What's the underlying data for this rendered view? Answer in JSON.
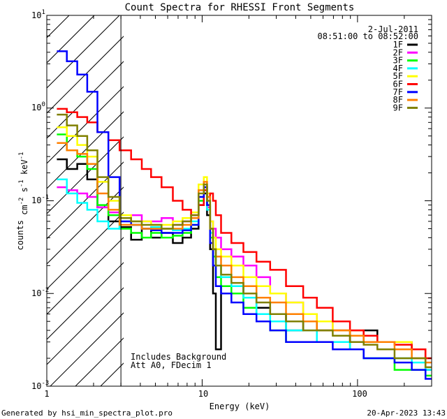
{
  "chart_data": {
    "type": "line",
    "title": "Count Spectra for RHESSI Front Segments",
    "xlabel": "Energy (keV)",
    "ylabel": "counts cm-2 s-1 keV-1",
    "xscale": "log",
    "yscale": "log",
    "xlim": [
      1,
      300
    ],
    "ylim": [
      0.001,
      10
    ],
    "x_ticks": [
      1,
      10,
      100
    ],
    "x_tick_labels": [
      "1",
      "10",
      "100"
    ],
    "y_ticks": [
      0.001,
      0.01,
      0.1,
      1,
      10
    ],
    "y_tick_labels": [
      {
        "base": "10",
        "exp": "-3"
      },
      {
        "base": "10",
        "exp": "-2"
      },
      {
        "base": "10",
        "exp": "-1"
      },
      {
        "base": "10",
        "exp": "0"
      },
      {
        "base": "10",
        "exp": "1"
      }
    ],
    "hatched_region": {
      "x_from": 1,
      "x_to": 3
    },
    "date_text": "2-Jul-2011",
    "time_range_text": "08:51:00 to 08:52:00",
    "annotations": [
      "Includes Background",
      "Att A0, FDecim 1"
    ],
    "footer_left": "Generated by hsi_min_spectra_plot.pro",
    "footer_right": "20-Apr-2023 13:43",
    "series": [
      {
        "name": "1F",
        "color": "#000000",
        "x": [
          1.25,
          1.45,
          1.7,
          1.95,
          2.3,
          2.7,
          3.2,
          3.8,
          4.4,
          5,
          6,
          7,
          8,
          9,
          10,
          10.5,
          11,
          11.5,
          12,
          12.5,
          14,
          17,
          20,
          25,
          30,
          40,
          50,
          60,
          80,
          100,
          120,
          150,
          200,
          250,
          300
        ],
        "y": [
          0.28,
          0.22,
          0.25,
          0.17,
          0.085,
          0.06,
          0.052,
          0.038,
          0.05,
          0.04,
          0.045,
          0.035,
          0.04,
          0.05,
          0.09,
          0.12,
          0.07,
          0.03,
          0.01,
          0.0025,
          0.012,
          0.012,
          0.01,
          0.007,
          0.006,
          0.004,
          0.005,
          0.004,
          0.004,
          0.003,
          0.004,
          0.003,
          0.003,
          0.0025,
          0.0015
        ]
      },
      {
        "name": "2F",
        "color": "#ff00ff",
        "x": [
          1.25,
          1.45,
          1.7,
          1.95,
          2.3,
          2.7,
          3.2,
          3.8,
          4.4,
          5,
          6,
          7,
          8,
          9,
          10,
          10.5,
          11,
          11.5,
          12,
          12.5,
          14,
          17,
          20,
          25,
          30,
          40,
          50,
          60,
          80,
          100,
          120,
          150,
          200,
          250,
          300
        ],
        "y": [
          0.14,
          0.13,
          0.12,
          0.11,
          0.085,
          0.075,
          0.065,
          0.07,
          0.06,
          0.06,
          0.065,
          0.055,
          0.06,
          0.07,
          0.11,
          0.14,
          0.085,
          0.06,
          0.05,
          0.04,
          0.03,
          0.025,
          0.02,
          0.015,
          0.01,
          0.008,
          0.006,
          0.005,
          0.004,
          0.004,
          0.003,
          0.003,
          0.003,
          0.0025,
          0.002
        ]
      },
      {
        "name": "3F",
        "color": "#00ff00",
        "x": [
          1.25,
          1.45,
          1.7,
          1.95,
          2.3,
          2.7,
          3.2,
          3.8,
          4.4,
          5,
          6,
          7,
          8,
          9,
          10,
          10.5,
          11,
          11.5,
          12,
          12.5,
          14,
          17,
          20,
          25,
          30,
          40,
          50,
          60,
          80,
          100,
          120,
          150,
          200,
          250,
          300
        ],
        "y": [
          0.52,
          0.35,
          0.3,
          0.22,
          0.09,
          0.07,
          0.05,
          0.045,
          0.04,
          0.045,
          0.04,
          0.042,
          0.045,
          0.055,
          0.1,
          0.14,
          0.09,
          0.04,
          0.025,
          0.015,
          0.012,
          0.01,
          0.007,
          0.006,
          0.004,
          0.003,
          0.003,
          0.003,
          0.003,
          0.0025,
          0.002,
          0.002,
          0.0015,
          0.0015,
          0.0013
        ]
      },
      {
        "name": "4F",
        "color": "#00ffff",
        "x": [
          1.25,
          1.45,
          1.7,
          1.95,
          2.3,
          2.7,
          3.2,
          3.8,
          4.4,
          5,
          6,
          7,
          8,
          9,
          10,
          10.5,
          11,
          11.5,
          12,
          12.5,
          14,
          17,
          20,
          25,
          30,
          40,
          50,
          60,
          80,
          100,
          120,
          150,
          200,
          250,
          300
        ],
        "y": [
          0.17,
          0.12,
          0.095,
          0.08,
          0.06,
          0.05,
          0.06,
          0.055,
          0.05,
          0.052,
          0.05,
          0.048,
          0.05,
          0.06,
          0.11,
          0.13,
          0.08,
          0.045,
          0.03,
          0.02,
          0.015,
          0.012,
          0.009,
          0.006,
          0.005,
          0.004,
          0.004,
          0.003,
          0.003,
          0.0025,
          0.002,
          0.002,
          0.002,
          0.0018,
          0.0015
        ]
      },
      {
        "name": "5F",
        "color": "#ffff00",
        "x": [
          1.25,
          1.45,
          1.7,
          1.95,
          2.3,
          2.7,
          3.2,
          3.8,
          4.4,
          5,
          6,
          7,
          8,
          9,
          10,
          10.5,
          11,
          11.5,
          12,
          12.5,
          14,
          17,
          20,
          25,
          30,
          40,
          50,
          60,
          80,
          100,
          120,
          150,
          200,
          250,
          300
        ],
        "y": [
          0.62,
          0.5,
          0.4,
          0.3,
          0.16,
          0.1,
          0.07,
          0.06,
          0.06,
          0.055,
          0.055,
          0.06,
          0.065,
          0.075,
          0.15,
          0.18,
          0.12,
          0.06,
          0.04,
          0.03,
          0.025,
          0.02,
          0.015,
          0.012,
          0.01,
          0.008,
          0.006,
          0.005,
          0.004,
          0.004,
          0.0035,
          0.003,
          0.003,
          0.0025,
          0.002
        ]
      },
      {
        "name": "6F",
        "color": "#ff0000",
        "x": [
          1.25,
          1.45,
          1.7,
          1.95,
          2.3,
          2.7,
          3.2,
          3.8,
          4.4,
          5,
          6,
          7,
          8,
          9,
          10,
          10.5,
          11,
          11.5,
          12,
          12.5,
          14,
          17,
          20,
          25,
          30,
          40,
          50,
          60,
          80,
          100,
          120,
          150,
          200,
          250,
          300
        ],
        "y": [
          0.98,
          0.9,
          0.8,
          0.7,
          0.55,
          0.45,
          0.35,
          0.28,
          0.22,
          0.18,
          0.14,
          0.1,
          0.08,
          0.07,
          0.09,
          0.13,
          0.11,
          0.12,
          0.1,
          0.07,
          0.045,
          0.035,
          0.028,
          0.022,
          0.018,
          0.012,
          0.009,
          0.007,
          0.005,
          0.004,
          0.0035,
          0.003,
          0.0028,
          0.0025,
          0.002
        ]
      },
      {
        "name": "7F",
        "color": "#0000ff",
        "x": [
          1.25,
          1.45,
          1.7,
          1.95,
          2.3,
          2.7,
          3.2,
          3.8,
          4.4,
          5,
          6,
          7,
          8,
          9,
          10,
          10.5,
          11,
          11.5,
          12,
          12.5,
          14,
          17,
          20,
          25,
          30,
          40,
          50,
          60,
          80,
          100,
          120,
          150,
          200,
          250,
          300
        ],
        "y": [
          4.1,
          3.2,
          2.3,
          1.5,
          0.55,
          0.18,
          0.06,
          0.055,
          0.05,
          0.048,
          0.045,
          0.045,
          0.048,
          0.055,
          0.11,
          0.14,
          0.09,
          0.035,
          0.02,
          0.012,
          0.01,
          0.008,
          0.006,
          0.005,
          0.004,
          0.003,
          0.003,
          0.003,
          0.0025,
          0.0025,
          0.002,
          0.002,
          0.0018,
          0.0015,
          0.0012
        ]
      },
      {
        "name": "8F",
        "color": "#ff8000",
        "x": [
          1.25,
          1.45,
          1.7,
          1.95,
          2.3,
          2.7,
          3.2,
          3.8,
          4.4,
          5,
          6,
          7,
          8,
          9,
          10,
          10.5,
          11,
          11.5,
          12,
          12.5,
          14,
          17,
          20,
          25,
          30,
          40,
          50,
          60,
          80,
          100,
          120,
          150,
          200,
          250,
          300
        ],
        "y": [
          0.42,
          0.35,
          0.32,
          0.25,
          0.12,
          0.08,
          0.055,
          0.055,
          0.05,
          0.05,
          0.05,
          0.05,
          0.055,
          0.065,
          0.13,
          0.16,
          0.11,
          0.05,
          0.03,
          0.025,
          0.02,
          0.015,
          0.012,
          0.009,
          0.008,
          0.006,
          0.005,
          0.004,
          0.004,
          0.0035,
          0.003,
          0.003,
          0.0025,
          0.002,
          0.0018
        ]
      },
      {
        "name": "9F",
        "color": "#808000",
        "x": [
          1.25,
          1.45,
          1.7,
          1.95,
          2.3,
          2.7,
          3.2,
          3.8,
          4.4,
          5,
          6,
          7,
          8,
          9,
          10,
          10.5,
          11,
          11.5,
          12,
          12.5,
          14,
          17,
          20,
          25,
          30,
          40,
          50,
          60,
          80,
          100,
          120,
          150,
          200,
          250,
          300
        ],
        "y": [
          0.85,
          0.65,
          0.5,
          0.35,
          0.18,
          0.11,
          0.065,
          0.06,
          0.055,
          0.055,
          0.05,
          0.055,
          0.06,
          0.07,
          0.12,
          0.15,
          0.1,
          0.05,
          0.03,
          0.02,
          0.016,
          0.013,
          0.01,
          0.008,
          0.006,
          0.005,
          0.004,
          0.004,
          0.0035,
          0.003,
          0.0028,
          0.0025,
          0.002,
          0.002,
          0.0016
        ]
      }
    ]
  }
}
